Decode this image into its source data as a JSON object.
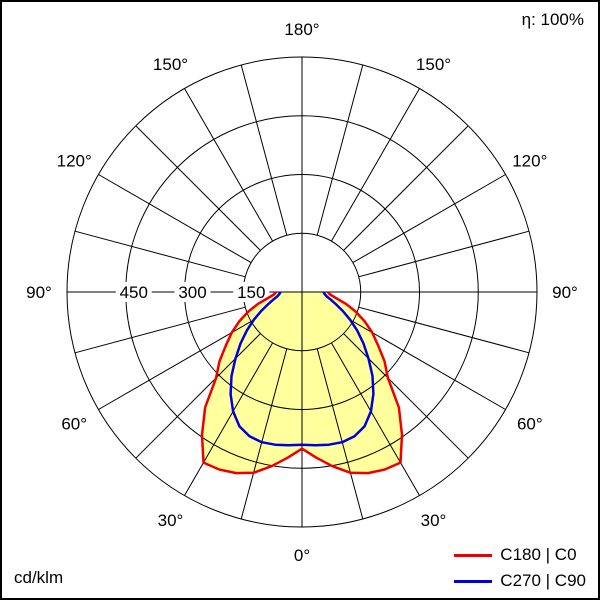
{
  "page": {
    "title": "Luminous intensity distribution (polar diagram)"
  },
  "chart_data": {
    "type": "line",
    "subtype": "polar-photometric-intensity",
    "units": "cd/klm",
    "efficiency_label": "η: 100%",
    "r_max": 600,
    "rings_cd": [
      150,
      300,
      450,
      600
    ],
    "ring_labels": [
      {
        "value": 150,
        "text": "150"
      },
      {
        "value": 300,
        "text": "300"
      },
      {
        "value": 450,
        "text": "450"
      }
    ],
    "spoke_step_deg": 15,
    "angle_labels": [
      {
        "deg": 0,
        "text": "0°"
      },
      {
        "deg": 30,
        "text": "30°"
      },
      {
        "deg": 60,
        "text": "60°"
      },
      {
        "deg": 90,
        "text": "90°"
      },
      {
        "deg": 120,
        "text": "120°"
      },
      {
        "deg": 150,
        "text": "150°"
      },
      {
        "deg": 180,
        "text": "180°"
      }
    ],
    "gamma_deg": [
      0,
      5,
      10,
      15,
      20,
      25,
      30,
      35,
      40,
      45,
      50,
      55,
      60,
      65,
      70,
      75,
      80,
      85,
      90
    ],
    "series": [
      {
        "name": "C180 | C0",
        "color": "#ee0000",
        "fill": "#ffff9e",
        "values_cd_per_klm": [
          400,
          425,
          452,
          478,
          492,
          500,
          503,
          445,
          385,
          310,
          275,
          237,
          207,
          176,
          146,
          116,
          88,
          72,
          66
        ]
      },
      {
        "name": "C270 | C90",
        "color": "#0000dd",
        "fill": null,
        "values_cd_per_klm": [
          390,
          393,
          396,
          397,
          392,
          378,
          352,
          318,
          280,
          240,
          205,
          172,
          142,
          115,
          93,
          76,
          64,
          58,
          55
        ]
      }
    ],
    "legend_position": "bottom-right",
    "grid": {
      "ring_step_cd": 150,
      "spoke_step_deg": 15
    }
  }
}
